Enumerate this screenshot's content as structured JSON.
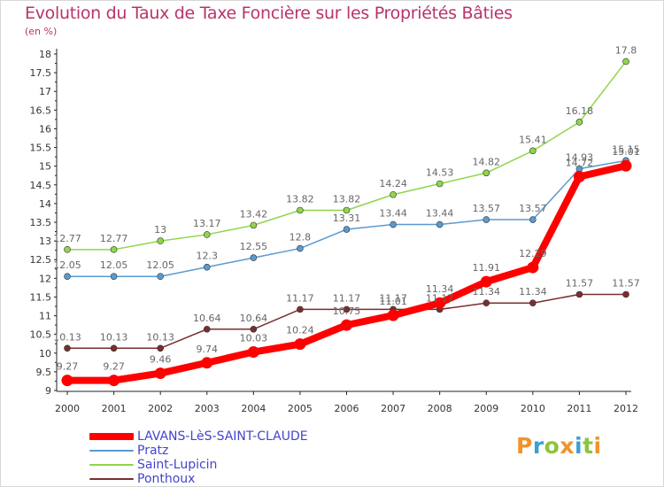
{
  "title": "Evolution du Taux de Taxe Foncière sur les Propriétés Bâties",
  "unit_label": "(en %)",
  "logo": {
    "text": "Proxiti",
    "letters": [
      {
        "ch": "P",
        "color": "#f0932b"
      },
      {
        "ch": "r",
        "color": "#3aa0d8"
      },
      {
        "ch": "o",
        "color": "#8cc43f"
      },
      {
        "ch": "x",
        "color": "#f0932b"
      },
      {
        "ch": "i",
        "color": "#3aa0d8"
      },
      {
        "ch": "t",
        "color": "#8cc43f"
      },
      {
        "ch": "i",
        "color": "#f0932b"
      }
    ]
  },
  "chart_data": {
    "type": "line",
    "title": "Evolution du Taux de Taxe Foncière sur les Propriétés Bâties",
    "ylabel": "(en %)",
    "xlabel": "",
    "x": [
      "2000",
      "2001",
      "2002",
      "2003",
      "2004",
      "2005",
      "2006",
      "2007",
      "2008",
      "2009",
      "2010",
      "2011",
      "2012"
    ],
    "ylim": [
      9,
      18
    ],
    "yticks": [
      "9",
      "9.5",
      "10",
      "10.5",
      "11",
      "11.5",
      "12",
      "12.5",
      "13",
      "13.5",
      "14",
      "14.5",
      "15",
      "15.5",
      "16",
      "16.5",
      "17",
      "17.5",
      "18"
    ],
    "grid": false,
    "legend_position": "bottom-left",
    "series": [
      {
        "name": "LAVANS-LèS-SAINT-CLAUDE",
        "color": "#ff0000",
        "values": [
          9.27,
          9.27,
          9.46,
          9.74,
          10.03,
          10.24,
          10.75,
          11.01,
          11.34,
          11.91,
          12.29,
          14.72,
          15.01
        ],
        "labels": [
          "9.27",
          "9.27",
          "9.46",
          "9.74",
          "10.03",
          "10.24",
          "10.75",
          "11.01",
          "11.34",
          "11.91",
          "12.29",
          "14.72",
          "15.01"
        ]
      },
      {
        "name": "Pratz",
        "color": "#5a9ad0",
        "values": [
          12.05,
          12.05,
          12.05,
          12.3,
          12.55,
          12.8,
          13.31,
          13.44,
          13.44,
          13.57,
          13.57,
          14.93,
          15.15
        ],
        "labels": [
          "12.05",
          "12.05",
          "12.05",
          "12.3",
          "12.55",
          "12.8",
          "13.31",
          "13.44",
          "13.44",
          "13.57",
          "13.57",
          "14.93",
          "15.15"
        ]
      },
      {
        "name": "Saint-Lupicin",
        "color": "#8fd64a",
        "values": [
          12.77,
          12.77,
          13,
          13.17,
          13.42,
          13.82,
          13.82,
          14.24,
          14.53,
          14.82,
          15.41,
          16.18,
          17.8
        ],
        "labels": [
          "12.77",
          "12.77",
          "13",
          "13.17",
          "13.42",
          "13.82",
          "13.82",
          "14.24",
          "14.53",
          "14.82",
          "15.41",
          "16.18",
          "17.8"
        ]
      },
      {
        "name": "Ponthoux",
        "color": "#7a2e2e",
        "values": [
          10.13,
          10.13,
          10.13,
          10.64,
          10.64,
          11.17,
          11.17,
          11.17,
          11.17,
          11.34,
          11.34,
          11.57,
          11.57
        ],
        "labels": [
          "10.13",
          "10.13",
          "10.13",
          "10.64",
          "10.64",
          "11.17",
          "11.17",
          "11.17",
          "11.17",
          "11.34",
          "11.34",
          "11.57",
          "11.57"
        ]
      }
    ]
  }
}
